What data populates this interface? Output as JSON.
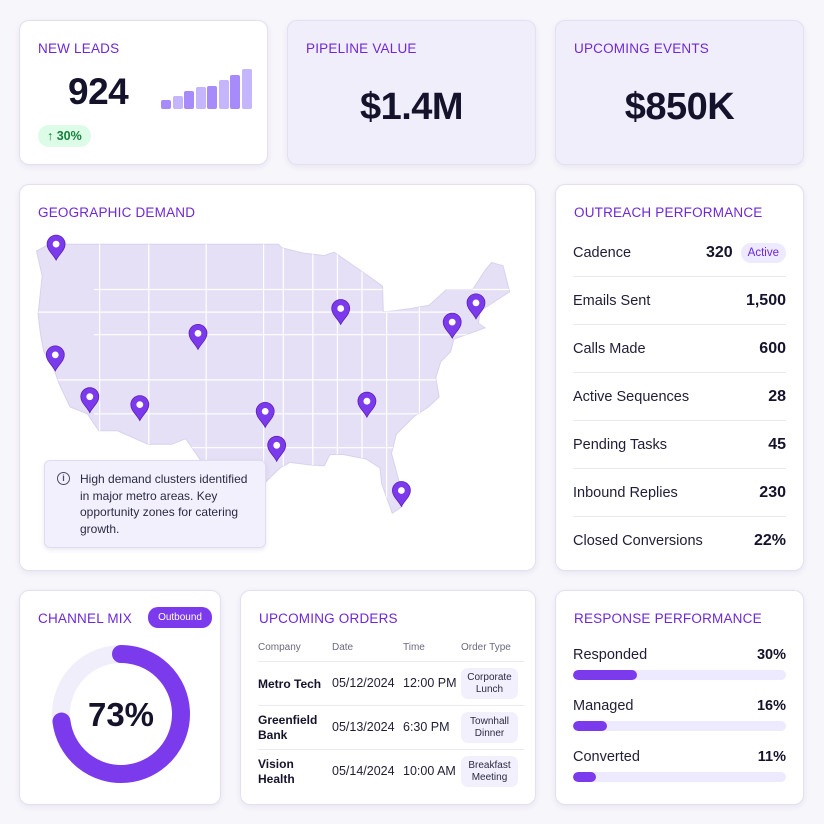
{
  "colors": {
    "accent": "#7c3aed",
    "accent_light": "#ede9fe",
    "map_fill": "#e5e0f5",
    "map_stroke": "#ffffff",
    "trend_positive": "#15803d"
  },
  "kpis": {
    "new_leads": {
      "title": "NEW LEADS",
      "value": "924",
      "trend_icon": "arrow-up-icon",
      "trend": "↑ 30%",
      "mini_bars": [
        0.22,
        0.32,
        0.45,
        0.55,
        0.58,
        0.72,
        0.85,
        1.0
      ]
    },
    "pipeline": {
      "title": "PIPELINE VALUE",
      "value": "$1.4M"
    },
    "events": {
      "title": "UPCOMING EVENTS",
      "value": "$850K"
    }
  },
  "geo": {
    "title": "GEOGRAPHIC DEMAND",
    "pin_icon": "map-pin-icon",
    "note_icon": "info-icon",
    "note": "High demand clusters identified in major metro areas. Key opportunity zones for catering growth.",
    "pins": [
      {
        "lon": -122.3,
        "lat": 47.6
      },
      {
        "lon": -122.4,
        "lat": 37.8
      },
      {
        "lon": -118.2,
        "lat": 34.1
      },
      {
        "lon": -112.1,
        "lat": 33.4
      },
      {
        "lon": -105.0,
        "lat": 39.7
      },
      {
        "lon": -96.8,
        "lat": 32.8
      },
      {
        "lon": -95.4,
        "lat": 29.8
      },
      {
        "lon": -87.6,
        "lat": 41.9
      },
      {
        "lon": -84.4,
        "lat": 33.7
      },
      {
        "lon": -80.2,
        "lat": 25.8
      },
      {
        "lon": -74.0,
        "lat": 40.7
      },
      {
        "lon": -71.1,
        "lat": 42.4
      }
    ]
  },
  "outreach": {
    "title": "OUTREACH PERFORMANCE",
    "rows": [
      {
        "label": "Cadence",
        "value": "320",
        "badge": "Active"
      },
      {
        "label": "Emails Sent",
        "value": "1,500"
      },
      {
        "label": "Calls Made",
        "value": "600"
      },
      {
        "label": "Active Sequences",
        "value": "28"
      },
      {
        "label": "Pending Tasks",
        "value": "45"
      },
      {
        "label": "Inbound Replies",
        "value": "230"
      },
      {
        "label": "Closed Conversions",
        "value": "22%"
      }
    ]
  },
  "channel": {
    "title": "CHANNEL MIX",
    "badge": "Outbound",
    "percent": 73,
    "label": "73%"
  },
  "orders": {
    "title": "UPCOMING ORDERS",
    "headers": {
      "company": "Company",
      "date": "Date",
      "time": "Time",
      "type": "Order Type"
    },
    "rows": [
      {
        "company": "Metro Tech",
        "date": "05/12/2024",
        "time": "12:00 PM",
        "type": "Corporate Lunch"
      },
      {
        "company": "Greenfield Bank",
        "date": "05/13/2024",
        "time": "6:30 PM",
        "type": "Townhall Dinner"
      },
      {
        "company": "Vision Health",
        "date": "05/14/2024",
        "time": "10:00 AM",
        "type": "Breakfast Meeting"
      }
    ]
  },
  "response": {
    "title": "RESPONSE PERFORMANCE",
    "items": [
      {
        "label": "Responded",
        "value": "30%",
        "fraction": 0.3
      },
      {
        "label": "Managed",
        "value": "16%",
        "fraction": 0.16
      },
      {
        "label": "Converted",
        "value": "11%",
        "fraction": 0.11
      }
    ]
  }
}
